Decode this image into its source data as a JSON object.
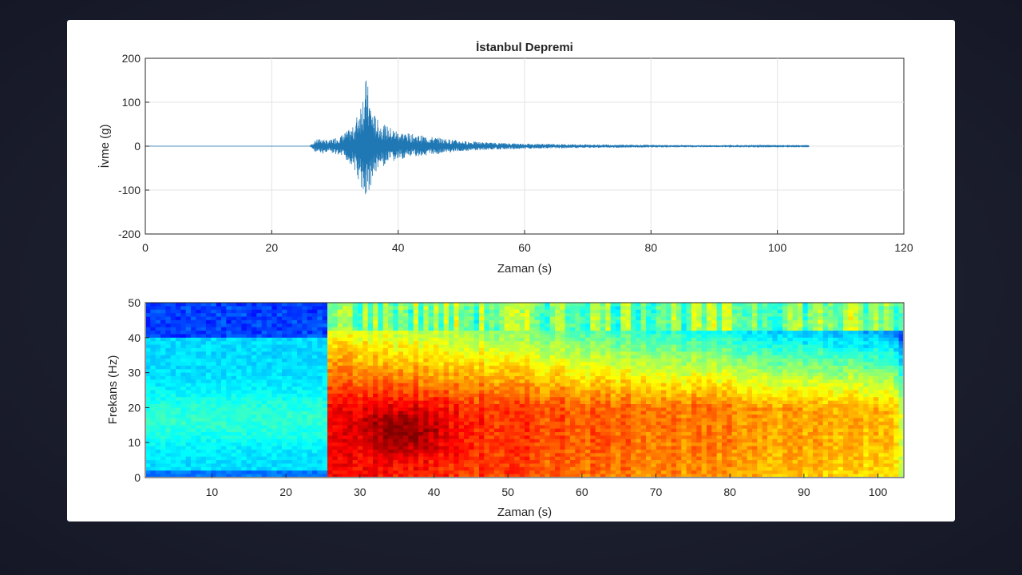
{
  "chart_data": [
    {
      "type": "line",
      "title": "İstanbul Depremi",
      "xlabel": "Zaman (s)",
      "ylabel": "İvme (g)",
      "xlim": [
        0,
        120
      ],
      "ylim": [
        -200,
        200
      ],
      "xticks": [
        0,
        20,
        40,
        60,
        80,
        100,
        120
      ],
      "yticks": [
        -200,
        -100,
        0,
        100,
        200
      ],
      "grid": true,
      "color": "#1f77b4",
      "series": [
        {
          "x": [
            0,
            26,
            27,
            28,
            29,
            30,
            31,
            32,
            33,
            34,
            35,
            35.5,
            36,
            37,
            38,
            40,
            42,
            45,
            50,
            55,
            60,
            70,
            80,
            90,
            100,
            105
          ],
          "y_max": [
            0,
            0,
            15,
            18,
            12,
            20,
            25,
            35,
            45,
            100,
            160,
            110,
            80,
            55,
            48,
            35,
            28,
            22,
            12,
            8,
            6,
            4,
            3,
            2,
            1,
            1
          ],
          "y_min": [
            0,
            0,
            -15,
            -18,
            -12,
            -20,
            -25,
            -35,
            -50,
            -95,
            -125,
            -100,
            -75,
            -50,
            -45,
            -32,
            -25,
            -20,
            -12,
            -8,
            -6,
            -4,
            -3,
            -2,
            -1,
            -1
          ]
        }
      ]
    },
    {
      "type": "heatmap",
      "title": "",
      "xlabel": "Zaman (s)",
      "ylabel": "Frekans (Hz)",
      "xlim": [
        1,
        103.5
      ],
      "ylim": [
        0,
        50
      ],
      "xticks": [
        10,
        20,
        30,
        40,
        50,
        60,
        70,
        80,
        90,
        100
      ],
      "yticks": [
        0,
        10,
        20,
        30,
        40,
        50
      ],
      "colormap": "jet",
      "onset_time": 25.5,
      "peak_time": 36,
      "peak_frequency": 13
    }
  ]
}
